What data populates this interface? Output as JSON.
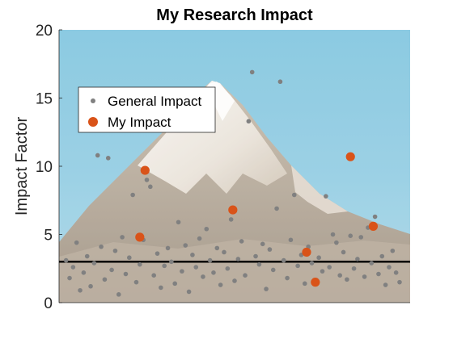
{
  "chart_data": {
    "type": "scatter",
    "title": "My Research Impact",
    "xlabel": "",
    "ylabel": "Impact Factor",
    "ylim": [
      0,
      20
    ],
    "yticks": [
      "0",
      "5",
      "10",
      "15",
      "20"
    ],
    "xticks": [],
    "background": "mountain photograph (snow-capped peak, blue sky)",
    "legend": {
      "placement": "upper-left",
      "entries": [
        "General Impact",
        "My Impact"
      ]
    },
    "reference_line": {
      "y": 3.0,
      "color": "#000000"
    },
    "series": [
      {
        "name": "General Impact",
        "color": "#808080",
        "marker": "small-dot",
        "points": [
          [
            0.02,
            3.1
          ],
          [
            0.03,
            1.8
          ],
          [
            0.04,
            2.6
          ],
          [
            0.05,
            4.4
          ],
          [
            0.06,
            0.9
          ],
          [
            0.07,
            2.2
          ],
          [
            0.08,
            3.4
          ],
          [
            0.09,
            1.2
          ],
          [
            0.1,
            2.9
          ],
          [
            0.11,
            10.8
          ],
          [
            0.12,
            4.1
          ],
          [
            0.13,
            1.7
          ],
          [
            0.14,
            10.6
          ],
          [
            0.15,
            2.4
          ],
          [
            0.16,
            3.8
          ],
          [
            0.17,
            0.6
          ],
          [
            0.18,
            4.8
          ],
          [
            0.19,
            2.1
          ],
          [
            0.2,
            3.3
          ],
          [
            0.21,
            7.9
          ],
          [
            0.22,
            1.5
          ],
          [
            0.23,
            2.8
          ],
          [
            0.24,
            4.6
          ],
          [
            0.25,
            9.0
          ],
          [
            0.26,
            8.5
          ],
          [
            0.27,
            2.0
          ],
          [
            0.28,
            3.6
          ],
          [
            0.29,
            1.1
          ],
          [
            0.3,
            2.7
          ],
          [
            0.31,
            4.0
          ],
          [
            0.32,
            3.0
          ],
          [
            0.33,
            1.4
          ],
          [
            0.34,
            5.9
          ],
          [
            0.35,
            2.3
          ],
          [
            0.36,
            4.2
          ],
          [
            0.37,
            0.8
          ],
          [
            0.38,
            3.5
          ],
          [
            0.39,
            2.6
          ],
          [
            0.4,
            4.7
          ],
          [
            0.41,
            1.9
          ],
          [
            0.42,
            5.4
          ],
          [
            0.43,
            3.1
          ],
          [
            0.44,
            2.2
          ],
          [
            0.45,
            4.0
          ],
          [
            0.46,
            1.3
          ],
          [
            0.47,
            3.7
          ],
          [
            0.48,
            2.5
          ],
          [
            0.49,
            6.1
          ],
          [
            0.5,
            1.6
          ],
          [
            0.51,
            3.2
          ],
          [
            0.52,
            4.5
          ],
          [
            0.53,
            2.0
          ],
          [
            0.54,
            13.3
          ],
          [
            0.55,
            16.9
          ],
          [
            0.56,
            3.4
          ],
          [
            0.57,
            2.8
          ],
          [
            0.58,
            4.3
          ],
          [
            0.59,
            1.0
          ],
          [
            0.6,
            3.9
          ],
          [
            0.61,
            2.4
          ],
          [
            0.62,
            6.9
          ],
          [
            0.63,
            16.2
          ],
          [
            0.64,
            3.1
          ],
          [
            0.65,
            1.8
          ],
          [
            0.66,
            4.6
          ],
          [
            0.67,
            7.9
          ],
          [
            0.68,
            2.7
          ],
          [
            0.69,
            3.5
          ],
          [
            0.7,
            1.4
          ],
          [
            0.71,
            4.1
          ],
          [
            0.72,
            2.9
          ],
          [
            0.73,
            1.5
          ],
          [
            0.74,
            3.3
          ],
          [
            0.75,
            2.3
          ],
          [
            0.76,
            7.8
          ],
          [
            0.77,
            2.6
          ],
          [
            0.78,
            5.0
          ],
          [
            0.79,
            4.4
          ],
          [
            0.8,
            2.0
          ],
          [
            0.81,
            3.7
          ],
          [
            0.82,
            1.7
          ],
          [
            0.83,
            4.9
          ],
          [
            0.84,
            2.5
          ],
          [
            0.85,
            3.2
          ],
          [
            0.86,
            4.8
          ],
          [
            0.87,
            1.9
          ],
          [
            0.88,
            5.5
          ],
          [
            0.89,
            2.9
          ],
          [
            0.9,
            6.3
          ],
          [
            0.91,
            2.1
          ],
          [
            0.92,
            3.4
          ],
          [
            0.93,
            1.3
          ],
          [
            0.94,
            2.6
          ],
          [
            0.95,
            3.8
          ],
          [
            0.96,
            2.2
          ],
          [
            0.97,
            1.5
          ]
        ]
      },
      {
        "name": "My Impact",
        "color": "#d95319",
        "marker": "large-dot",
        "points": [
          [
            0.23,
            4.8
          ],
          [
            0.245,
            9.7
          ],
          [
            0.495,
            6.8
          ],
          [
            0.705,
            3.7
          ],
          [
            0.73,
            1.5
          ],
          [
            0.83,
            10.7
          ],
          [
            0.895,
            5.6
          ]
        ]
      }
    ]
  }
}
